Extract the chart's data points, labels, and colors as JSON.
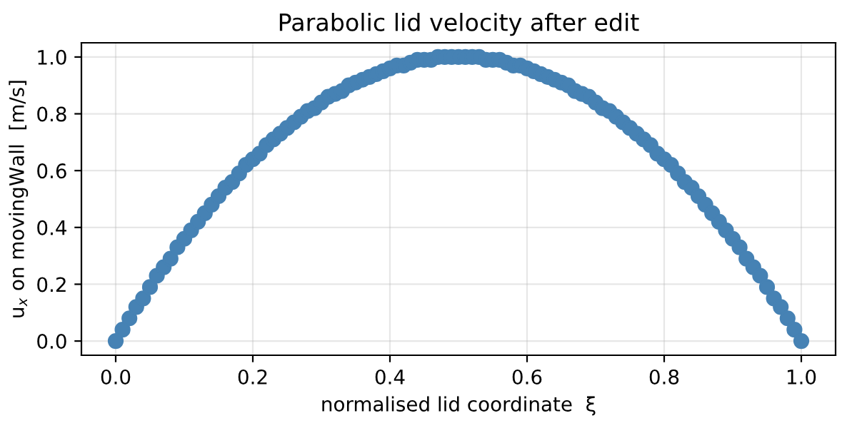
{
  "chart_data": {
    "type": "scatter",
    "title": "Parabolic lid velocity after edit",
    "xlabel": "normalised lid coordinate  ξ",
    "ylabel": "u$_{x}$ on movingWall  [m/s]",
    "series": [
      {
        "color": "#4682b4",
        "x": [
          0,
          0.01,
          0.02,
          0.03,
          0.04,
          0.05,
          0.06,
          0.07,
          0.08,
          0.09,
          0.1,
          0.11,
          0.12,
          0.13,
          0.14,
          0.15,
          0.16,
          0.17,
          0.18,
          0.19,
          0.2,
          0.21,
          0.22,
          0.23,
          0.24,
          0.25,
          0.26,
          0.27,
          0.28,
          0.29,
          0.3,
          0.31,
          0.32,
          0.33,
          0.34,
          0.35,
          0.36,
          0.37,
          0.38,
          0.39,
          0.4,
          0.41,
          0.42,
          0.43,
          0.44,
          0.45,
          0.46,
          0.47,
          0.48,
          0.49,
          0.5,
          0.51,
          0.52,
          0.53,
          0.54,
          0.55,
          0.56,
          0.57,
          0.58,
          0.59,
          0.6,
          0.61,
          0.62,
          0.63,
          0.64,
          0.65,
          0.66,
          0.67,
          0.68,
          0.69,
          0.7,
          0.71,
          0.72,
          0.73,
          0.74,
          0.75,
          0.76,
          0.77,
          0.78,
          0.79,
          0.8,
          0.81,
          0.82,
          0.83,
          0.84,
          0.85,
          0.86,
          0.87,
          0.88,
          0.89,
          0.9,
          0.91,
          0.92,
          0.93,
          0.94,
          0.95,
          0.96,
          0.97,
          0.98,
          0.99,
          1.0
        ],
        "values": [
          0,
          0.04,
          0.08,
          0.12,
          0.15,
          0.19,
          0.23,
          0.26,
          0.29,
          0.33,
          0.36,
          0.39,
          0.42,
          0.45,
          0.48,
          0.51,
          0.54,
          0.56,
          0.59,
          0.62,
          0.64,
          0.66,
          0.69,
          0.71,
          0.73,
          0.75,
          0.77,
          0.79,
          0.81,
          0.82,
          0.84,
          0.86,
          0.87,
          0.88,
          0.9,
          0.91,
          0.92,
          0.93,
          0.94,
          0.95,
          0.96,
          0.97,
          0.97,
          0.98,
          0.99,
          0.99,
          0.99,
          1.0,
          1.0,
          1.0,
          1.0,
          1.0,
          1.0,
          1.0,
          0.99,
          0.99,
          0.99,
          0.98,
          0.97,
          0.97,
          0.96,
          0.95,
          0.94,
          0.93,
          0.92,
          0.91,
          0.9,
          0.88,
          0.87,
          0.86,
          0.84,
          0.82,
          0.81,
          0.79,
          0.77,
          0.75,
          0.73,
          0.71,
          0.69,
          0.66,
          0.64,
          0.62,
          0.59,
          0.56,
          0.54,
          0.51,
          0.48,
          0.45,
          0.42,
          0.39,
          0.36,
          0.33,
          0.29,
          0.26,
          0.23,
          0.19,
          0.15,
          0.12,
          0.08,
          0.04,
          0
        ]
      }
    ],
    "xlim": [
      -0.05,
      1.05
    ],
    "ylim": [
      -0.05,
      1.05
    ],
    "xticks": [
      {
        "value": 0,
        "label": "0.0"
      },
      0.2,
      0.4,
      0.6,
      0.8,
      {
        "value": 1,
        "label": "1.0"
      }
    ],
    "yticks": [
      {
        "value": 0,
        "label": "0.0"
      },
      0.2,
      0.4,
      0.6,
      0.8,
      {
        "value": 1,
        "label": "1.0"
      }
    ],
    "grid": true,
    "marker": "circle"
  }
}
